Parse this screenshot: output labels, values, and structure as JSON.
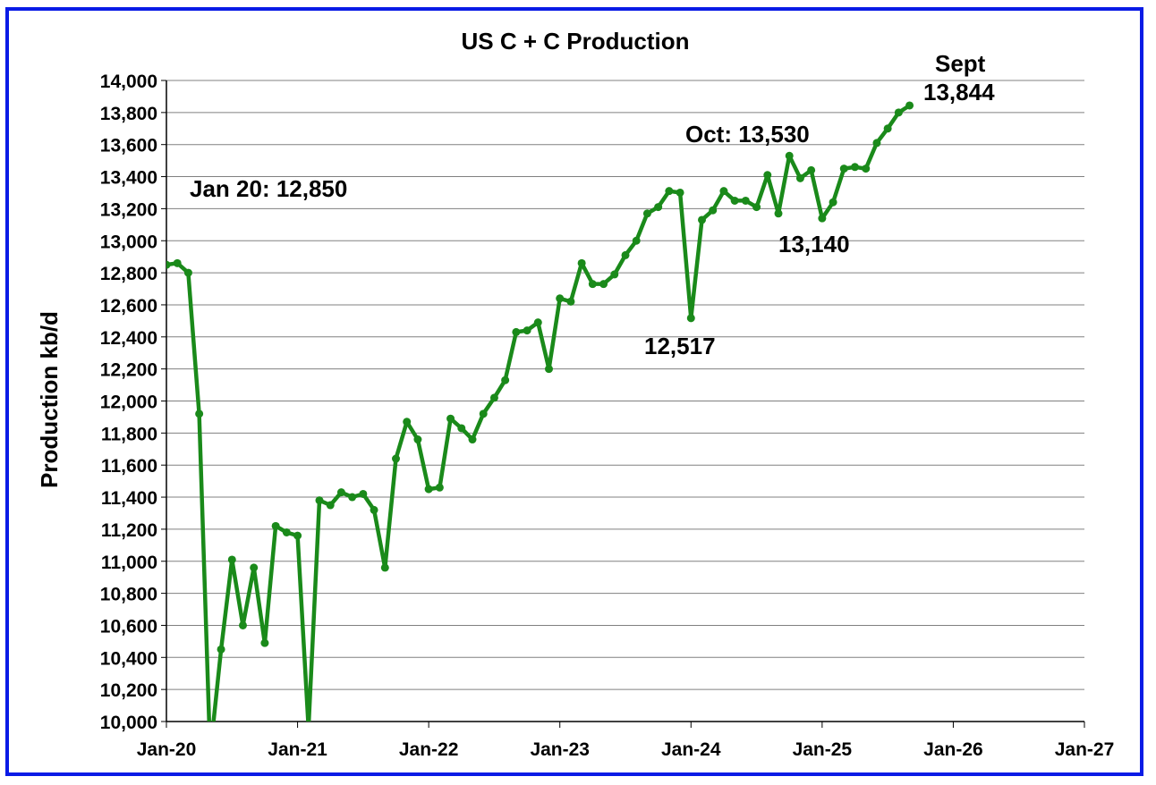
{
  "colors": {
    "frame": "#0a1be6",
    "line": "#1a8a1a",
    "grid": "#808080"
  },
  "chart_data": {
    "type": "line",
    "title": "US C + C Production",
    "ylabel": "Production kb/d",
    "xlabel": "",
    "ylim": [
      10000,
      14000
    ],
    "yticks": [
      10000,
      10200,
      10400,
      10600,
      10800,
      11000,
      11200,
      11400,
      11600,
      11800,
      12000,
      12200,
      12400,
      12600,
      12800,
      13000,
      13200,
      13400,
      13600,
      13800,
      14000
    ],
    "ytick_labels": [
      "10,000",
      "10,200",
      "10,400",
      "10,600",
      "10,800",
      "11,000",
      "11,200",
      "11,400",
      "11,600",
      "11,800",
      "12,000",
      "12,200",
      "12,400",
      "12,600",
      "12,800",
      "13,000",
      "13,200",
      "13,400",
      "13,600",
      "13,800",
      "14,000"
    ],
    "xlim": [
      "2020-01",
      "2027-01"
    ],
    "xticks": [
      "2020-01",
      "2021-01",
      "2022-01",
      "2023-01",
      "2024-01",
      "2025-01",
      "2026-01",
      "2027-01"
    ],
    "xtick_labels": [
      "Jan-20",
      "Jan-21",
      "Jan-22",
      "Jan-23",
      "Jan-24",
      "Jan-25",
      "Jan-26",
      "Jan-27"
    ],
    "grid": "horizontal",
    "series": [
      {
        "x": [
          "2020-01",
          "2020-02",
          "2020-03",
          "2020-04",
          "2020-05",
          "2020-06",
          "2020-07",
          "2020-08",
          "2020-09",
          "2020-10",
          "2020-11",
          "2020-12",
          "2021-01",
          "2021-02",
          "2021-03",
          "2021-04",
          "2021-05",
          "2021-06",
          "2021-07",
          "2021-08",
          "2021-09",
          "2021-10",
          "2021-11",
          "2021-12",
          "2022-01",
          "2022-02",
          "2022-03",
          "2022-04",
          "2022-05",
          "2022-06",
          "2022-07",
          "2022-08",
          "2022-09",
          "2022-10",
          "2022-11",
          "2022-12",
          "2023-01",
          "2023-02",
          "2023-03",
          "2023-04",
          "2023-05",
          "2023-06",
          "2023-07",
          "2023-08",
          "2023-09",
          "2023-10",
          "2023-11",
          "2023-12",
          "2024-01",
          "2024-02",
          "2024-03",
          "2024-04",
          "2024-05",
          "2024-06",
          "2024-07",
          "2024-08",
          "2024-09",
          "2024-10",
          "2024-11",
          "2024-12",
          "2025-01",
          "2025-02",
          "2025-03",
          "2025-04",
          "2025-05",
          "2025-06",
          "2025-07",
          "2025-08",
          "2025-09"
        ],
        "values": [
          12850,
          12860,
          12800,
          11920,
          9800,
          10450,
          11010,
          10600,
          10960,
          10490,
          11220,
          11180,
          11160,
          9960,
          11380,
          11350,
          11430,
          11400,
          11420,
          11320,
          10960,
          11640,
          11870,
          11760,
          11450,
          11460,
          11890,
          11830,
          11760,
          11920,
          12020,
          12130,
          12430,
          12440,
          12490,
          12200,
          12640,
          12620,
          12860,
          12730,
          12730,
          12790,
          12910,
          13000,
          13170,
          13210,
          13310,
          13300,
          12517,
          13130,
          13190,
          13310,
          13250,
          13250,
          13210,
          13410,
          13170,
          13530,
          13390,
          13440,
          13140,
          13240,
          13450,
          13460,
          13450,
          13610,
          13700,
          13800,
          13844
        ]
      }
    ],
    "annotations": [
      {
        "text": "Jan 20: 12,850"
      },
      {
        "text": "Oct: 13,530"
      },
      {
        "text": "Sept"
      },
      {
        "text": "13,844"
      },
      {
        "text": "12,517"
      },
      {
        "text": "13,140"
      }
    ]
  }
}
